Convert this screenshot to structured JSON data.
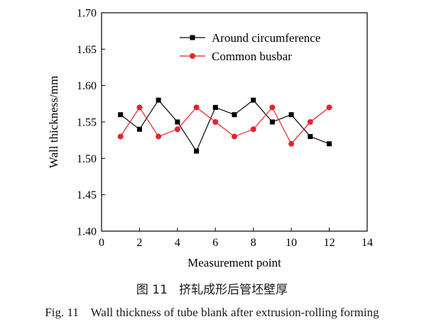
{
  "caption": {
    "cn": "图 11   挤轧成形后管坯壁厚",
    "en": "Fig. 11    Wall thickness of tube blank after extrusion-rolling forming"
  },
  "chart_data": {
    "type": "line",
    "xlabel": "Measurement point",
    "ylabel": "Wall thickness/mm",
    "xlim": [
      0,
      14
    ],
    "ylim": [
      1.4,
      1.7
    ],
    "xticks": [
      "0",
      "2",
      "4",
      "6",
      "8",
      "10",
      "12",
      "14"
    ],
    "yticks": [
      "1.40",
      "1.45",
      "1.50",
      "1.55",
      "1.60",
      "1.65",
      "1.70"
    ],
    "grid": false,
    "legend_position": "top-right",
    "x": [
      1,
      2,
      3,
      4,
      5,
      6,
      7,
      8,
      9,
      10,
      11,
      12
    ],
    "series": [
      {
        "name": "Around circumference",
        "color": "#000000",
        "marker": "square",
        "values": [
          1.56,
          1.54,
          1.58,
          1.55,
          1.51,
          1.57,
          1.56,
          1.58,
          1.55,
          1.56,
          1.53,
          1.52
        ]
      },
      {
        "name": "Common busbar",
        "color": "#e8232a",
        "marker": "circle",
        "values": [
          1.53,
          1.57,
          1.53,
          1.54,
          1.57,
          1.55,
          1.53,
          1.54,
          1.57,
          1.52,
          1.55,
          1.57
        ]
      }
    ]
  }
}
